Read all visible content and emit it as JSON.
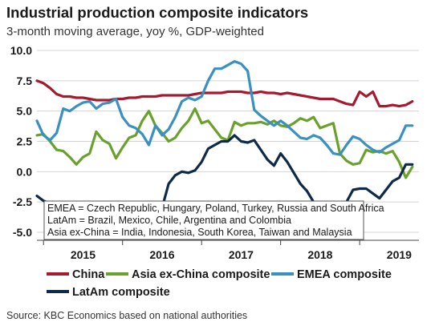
{
  "title": "Industrial production composite indicators",
  "subtitle": "3-month moving average, yoy %, GDP-weighted",
  "source": "Source: KBC Economics based on national authorities",
  "notes": [
    "EMEA = Czech Republic, Hungary, Poland, Turkey, Russia and South Africa",
    "LatAm = Brazil, Mexico, Chile, Argentina and Colombia",
    "Asia ex-China = India, Indonesia, South Korea, Taiwan and Malaysia"
  ],
  "chart_data": {
    "type": "line",
    "ylim": [
      -5,
      10
    ],
    "yticks": [
      "10.0",
      "7.5",
      "5.0",
      "2.5",
      "0.0",
      "-2.5",
      "-5.0"
    ],
    "ytick_values": [
      10,
      7.5,
      5,
      2.5,
      0,
      -2.5,
      -5
    ],
    "x_range": [
      "2014-12",
      "2019-10"
    ],
    "x_ticks": [
      "2015",
      "2016",
      "2017",
      "2018",
      "2019"
    ],
    "grid": true,
    "legend_position": "bottom",
    "series": [
      {
        "name": "China",
        "color": "#a6192e",
        "x": [
          "2014-12",
          "2015-01",
          "2015-02",
          "2015-03",
          "2015-04",
          "2015-05",
          "2015-06",
          "2015-07",
          "2015-08",
          "2015-09",
          "2015-10",
          "2015-11",
          "2015-12",
          "2016-01",
          "2016-02",
          "2016-03",
          "2016-04",
          "2016-05",
          "2016-06",
          "2016-07",
          "2016-08",
          "2016-09",
          "2016-10",
          "2016-11",
          "2016-12",
          "2017-01",
          "2017-02",
          "2017-03",
          "2017-04",
          "2017-05",
          "2017-06",
          "2017-07",
          "2017-08",
          "2017-09",
          "2017-10",
          "2017-11",
          "2017-12",
          "2018-01",
          "2018-02",
          "2018-03",
          "2018-04",
          "2018-05",
          "2018-06",
          "2018-07",
          "2018-08",
          "2018-09",
          "2018-10",
          "2018-11",
          "2018-12",
          "2019-01",
          "2019-02",
          "2019-03",
          "2019-04",
          "2019-05",
          "2019-06",
          "2019-07",
          "2019-08",
          "2019-09"
        ],
        "values": [
          7.5,
          7.3,
          6.9,
          6.4,
          6.2,
          6.2,
          6.1,
          6.1,
          6.0,
          5.9,
          5.9,
          5.9,
          6.0,
          6.0,
          6.1,
          6.1,
          6.2,
          6.2,
          6.2,
          6.3,
          6.3,
          6.3,
          6.3,
          6.3,
          6.4,
          6.5,
          6.5,
          6.5,
          6.5,
          6.6,
          6.6,
          6.6,
          6.5,
          6.5,
          6.6,
          6.5,
          6.5,
          6.4,
          6.5,
          6.4,
          6.3,
          6.2,
          6.1,
          6.0,
          6.0,
          6.0,
          5.8,
          5.6,
          5.5,
          6.6,
          6.2,
          6.6,
          5.4,
          5.4,
          5.5,
          5.4,
          5.5,
          5.8
        ]
      },
      {
        "name": "Asia ex-China composite",
        "color": "#6aa12c",
        "x": [
          "2014-12",
          "2015-01",
          "2015-02",
          "2015-03",
          "2015-04",
          "2015-05",
          "2015-06",
          "2015-07",
          "2015-08",
          "2015-09",
          "2015-10",
          "2015-11",
          "2015-12",
          "2016-01",
          "2016-02",
          "2016-03",
          "2016-04",
          "2016-05",
          "2016-06",
          "2016-07",
          "2016-08",
          "2016-09",
          "2016-10",
          "2016-11",
          "2016-12",
          "2017-01",
          "2017-02",
          "2017-03",
          "2017-04",
          "2017-05",
          "2017-06",
          "2017-07",
          "2017-08",
          "2017-09",
          "2017-10",
          "2017-11",
          "2017-12",
          "2018-01",
          "2018-02",
          "2018-03",
          "2018-04",
          "2018-05",
          "2018-06",
          "2018-07",
          "2018-08",
          "2018-09",
          "2018-10",
          "2018-11",
          "2018-12",
          "2019-01",
          "2019-02",
          "2019-03",
          "2019-04",
          "2019-05",
          "2019-06",
          "2019-07",
          "2019-08",
          "2019-09"
        ],
        "values": [
          3.0,
          3.1,
          2.5,
          1.8,
          1.7,
          1.2,
          0.6,
          1.2,
          1.5,
          3.3,
          2.6,
          2.3,
          1.1,
          2.0,
          2.8,
          3.0,
          4.2,
          5.0,
          3.8,
          3.2,
          2.5,
          2.8,
          3.6,
          4.2,
          5.2,
          4.0,
          4.2,
          3.5,
          2.8,
          2.6,
          4.1,
          3.8,
          4.0,
          4.0,
          4.1,
          3.9,
          4.2,
          3.8,
          3.7,
          4.0,
          4.4,
          4.2,
          4.5,
          3.6,
          3.8,
          4.0,
          1.5,
          0.9,
          0.6,
          0.7,
          1.8,
          1.6,
          1.7,
          1.5,
          1.7,
          0.8,
          -0.5,
          0.4
        ]
      },
      {
        "name": "EMEA composite",
        "color": "#3a91c1",
        "x": [
          "2014-12",
          "2015-01",
          "2015-02",
          "2015-03",
          "2015-04",
          "2015-05",
          "2015-06",
          "2015-07",
          "2015-08",
          "2015-09",
          "2015-10",
          "2015-11",
          "2015-12",
          "2016-01",
          "2016-02",
          "2016-03",
          "2016-04",
          "2016-05",
          "2016-06",
          "2016-07",
          "2016-08",
          "2016-09",
          "2016-10",
          "2016-11",
          "2016-12",
          "2017-01",
          "2017-02",
          "2017-03",
          "2017-04",
          "2017-05",
          "2017-06",
          "2017-07",
          "2017-08",
          "2017-09",
          "2017-10",
          "2017-11",
          "2017-12",
          "2018-01",
          "2018-02",
          "2018-03",
          "2018-04",
          "2018-05",
          "2018-06",
          "2018-07",
          "2018-08",
          "2018-09",
          "2018-10",
          "2018-11",
          "2018-12",
          "2019-01",
          "2019-02",
          "2019-03",
          "2019-04",
          "2019-05",
          "2019-06",
          "2019-07",
          "2019-08",
          "2019-09"
        ],
        "values": [
          4.2,
          3.0,
          2.6,
          3.2,
          5.2,
          5.0,
          5.4,
          5.7,
          5.8,
          5.2,
          5.6,
          5.7,
          6.0,
          4.5,
          3.8,
          3.6,
          3.1,
          2.2,
          3.8,
          3.0,
          3.5,
          4.5,
          5.8,
          6.1,
          5.9,
          6.2,
          7.5,
          8.5,
          8.5,
          8.8,
          9.1,
          8.9,
          8.3,
          5.1,
          4.6,
          4.2,
          3.8,
          4.2,
          3.8,
          3.3,
          2.8,
          2.7,
          3.0,
          2.8,
          2.2,
          1.5,
          1.4,
          2.2,
          2.9,
          2.7,
          2.2,
          1.8,
          1.6,
          2.0,
          2.3,
          2.6,
          3.8,
          3.8
        ]
      },
      {
        "name": "LatAm composite",
        "color": "#0e2a47",
        "x": [
          "2014-12",
          "2015-01",
          "2015-02",
          "2015-03",
          "2015-04",
          "2015-05",
          "2015-06",
          "2015-07",
          "2015-08",
          "2015-09",
          "2015-10",
          "2015-11",
          "2015-12",
          "2016-01",
          "2016-02",
          "2016-03",
          "2016-04",
          "2016-05",
          "2016-06",
          "2016-07",
          "2016-08",
          "2016-09",
          "2016-10",
          "2016-11",
          "2016-12",
          "2017-01",
          "2017-02",
          "2017-03",
          "2017-04",
          "2017-05",
          "2017-06",
          "2017-07",
          "2017-08",
          "2017-09",
          "2017-10",
          "2017-11",
          "2017-12",
          "2018-01",
          "2018-02",
          "2018-03",
          "2018-04",
          "2018-05",
          "2018-06",
          "2018-07",
          "2018-08",
          "2018-09",
          "2018-10",
          "2018-11",
          "2018-12",
          "2019-01",
          "2019-02",
          "2019-03",
          "2019-04",
          "2019-05",
          "2019-06",
          "2019-07",
          "2019-08",
          "2019-09"
        ],
        "values": [
          -2.0,
          -2.4,
          -2.6,
          -2.8,
          -3.0,
          -3.4,
          -3.6,
          -3.9,
          -4.2,
          -4.5,
          -4.5,
          -4.2,
          -4.0,
          -3.8,
          -3.5,
          -3.6,
          -3.8,
          -3.6,
          -3.2,
          -3.0,
          -1.0,
          -0.3,
          0.0,
          -0.1,
          0.1,
          0.8,
          1.9,
          2.2,
          2.5,
          2.5,
          3.0,
          2.5,
          2.4,
          2.6,
          1.8,
          1.0,
          0.5,
          1.5,
          0.8,
          -0.1,
          -1.0,
          -1.6,
          -2.5,
          -2.8,
          -2.5,
          -2.8,
          -2.8,
          -2.5,
          -1.5,
          -1.4,
          -1.4,
          -1.8,
          -2.2,
          -1.5,
          -0.8,
          -0.5,
          0.6,
          0.6
        ]
      }
    ]
  }
}
